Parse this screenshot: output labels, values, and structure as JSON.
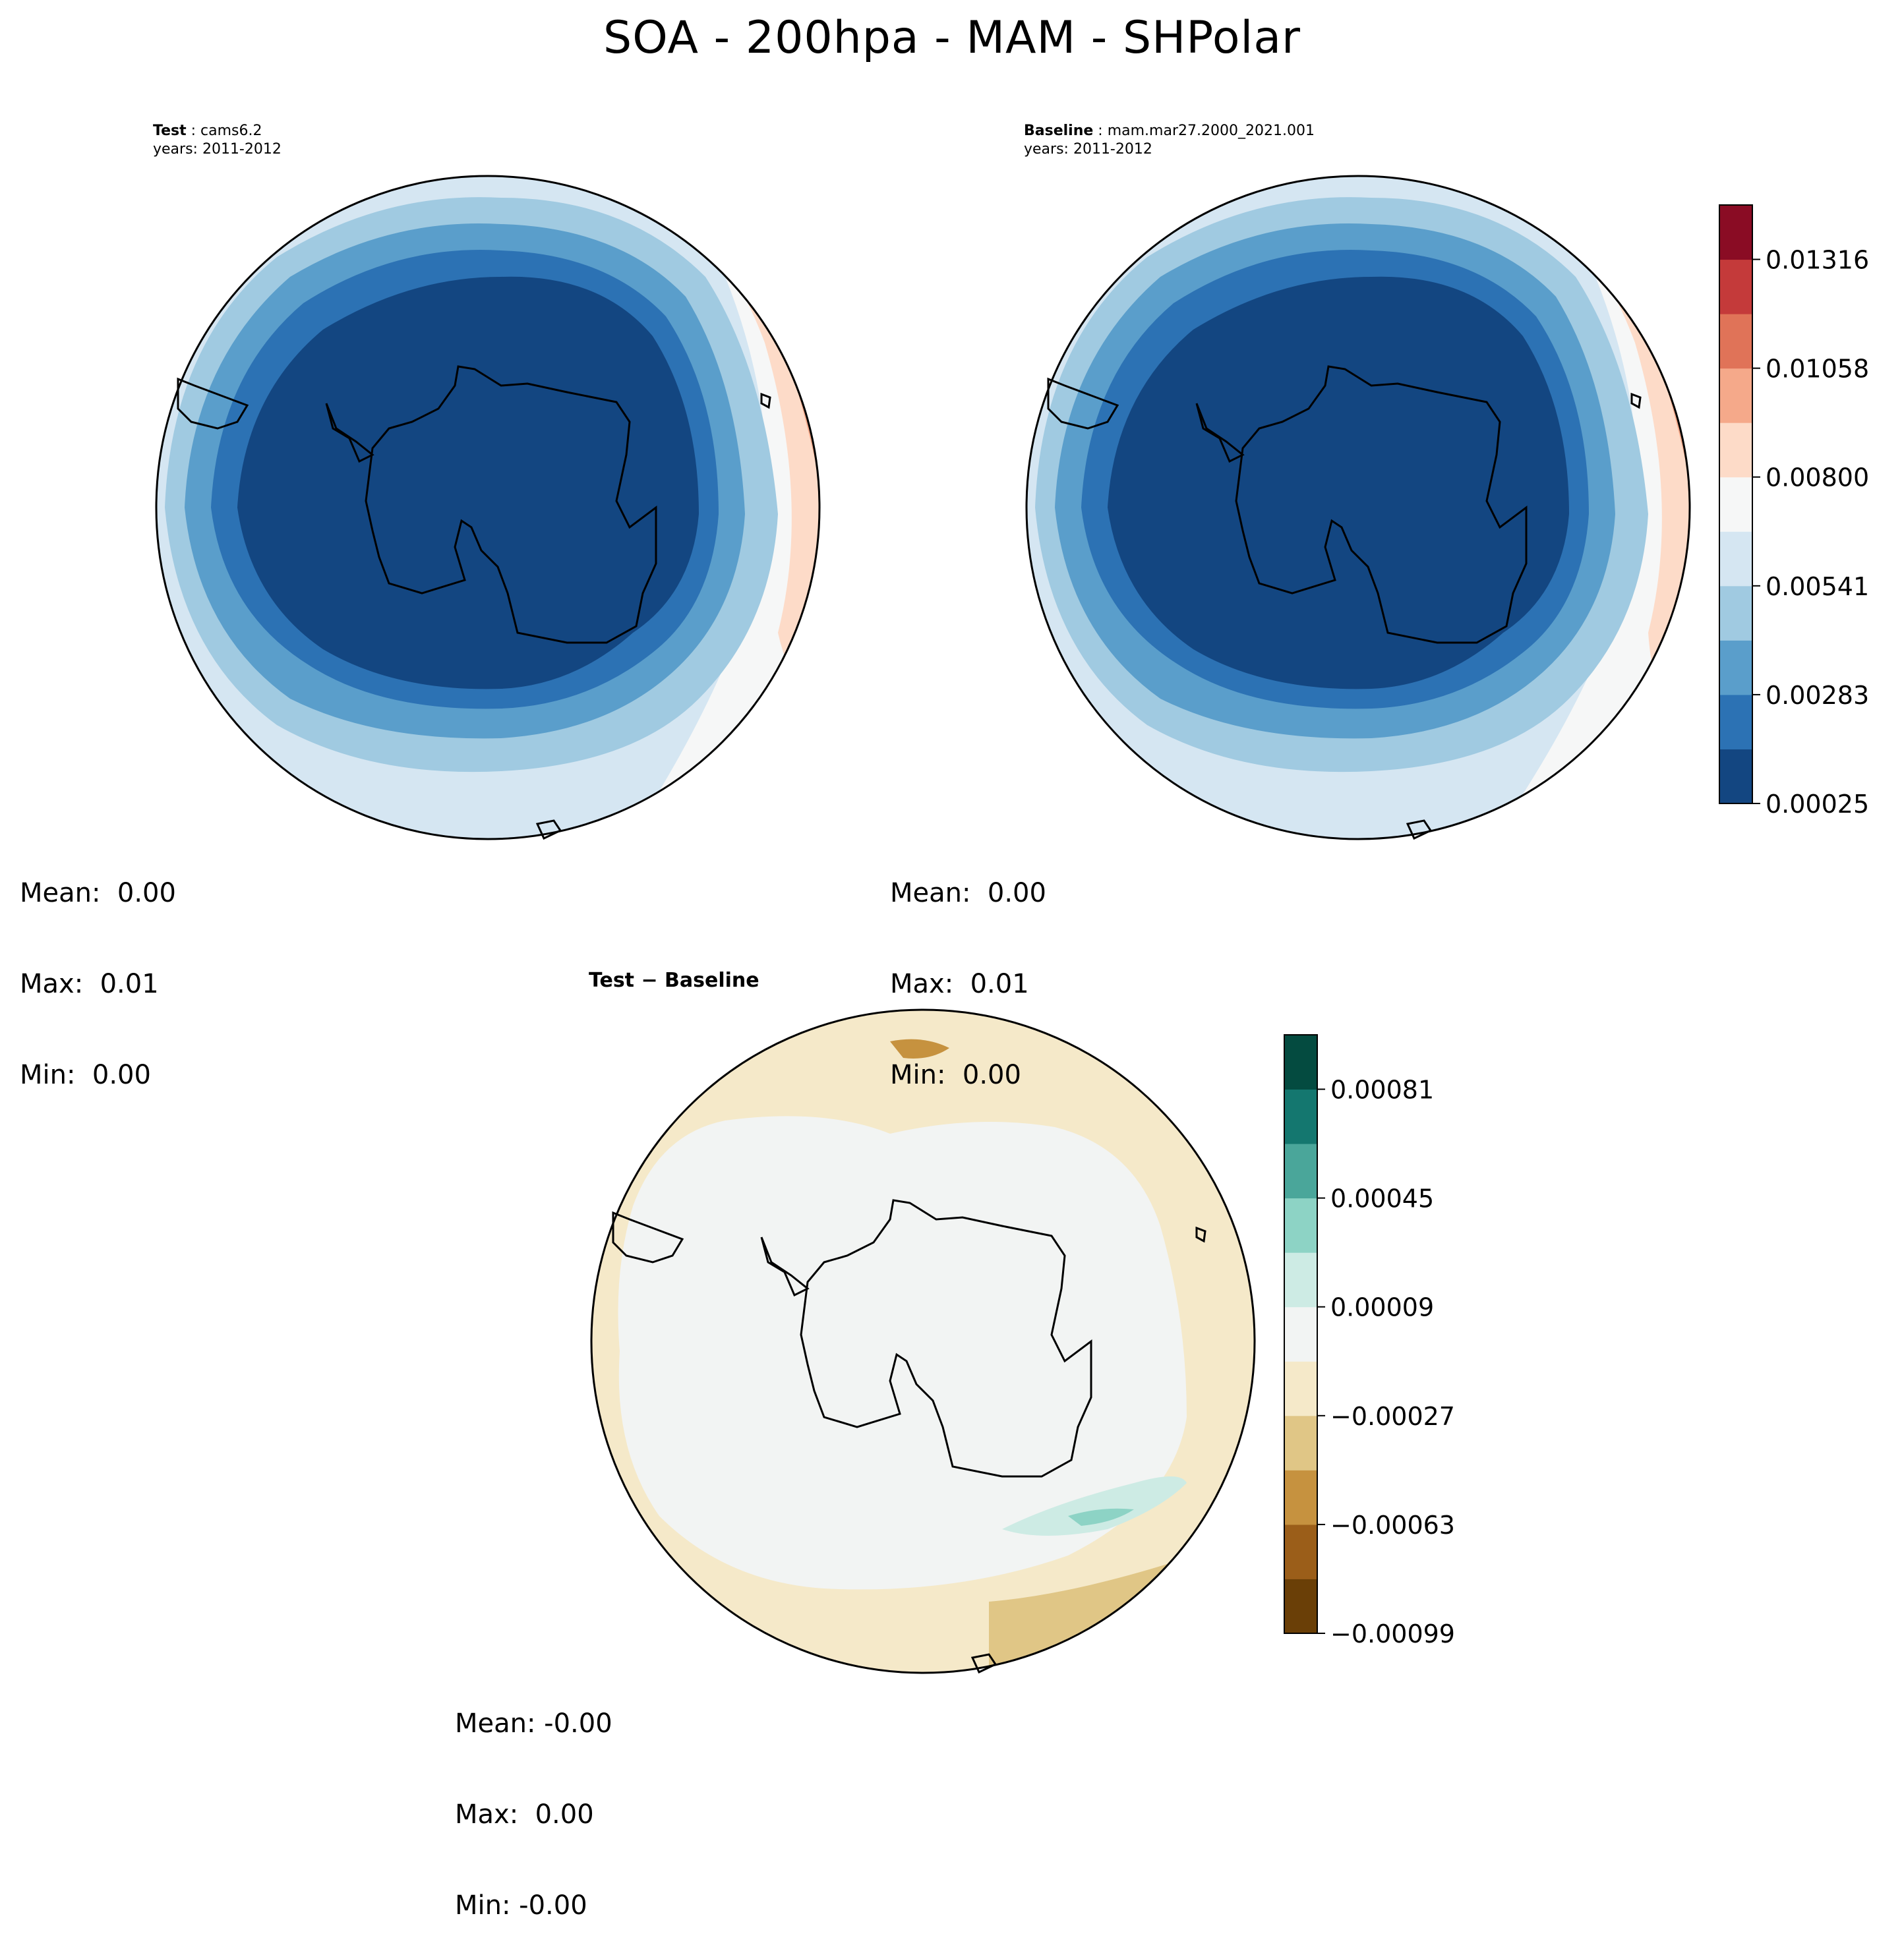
{
  "title": "SOA - 200hpa - MAM - SHPolar",
  "panels": {
    "test": {
      "label": "Test",
      "case": "cams6.2",
      "years": "years: 2011-2012",
      "stats": {
        "mean": "Mean:  0.00",
        "max": "Max:  0.01",
        "min": "Min:  0.00"
      }
    },
    "baseline": {
      "label": "Baseline",
      "case": "mam.mar27.2000_2021.001",
      "years": "years: 2011-2012",
      "stats": {
        "mean": "Mean:  0.00",
        "max": "Max:  0.01",
        "min": "Min:  0.00"
      }
    },
    "diff": {
      "label": "Test − Baseline",
      "stats": {
        "mean": "Mean: -0.00",
        "max": "Max:  0.00",
        "min": "Min: -0.00"
      }
    }
  },
  "colorbars": {
    "main": {
      "ticks": [
        "0.00025",
        "0.00283",
        "0.00541",
        "0.00800",
        "0.01058",
        "0.01316"
      ],
      "colors": [
        "#134681",
        "#2c72b4",
        "#5a9ecb",
        "#a0cae1",
        "#d5e6f2",
        "#f6f7f7",
        "#fddbc8",
        "#f5a98a",
        "#e07358",
        "#c43a3a",
        "#8a0c24"
      ]
    },
    "diff": {
      "ticks": [
        "−0.00099",
        "−0.00063",
        "−0.00027",
        "0.00009",
        "0.00045",
        "0.00081"
      ],
      "colors": [
        "#6a3f07",
        "#9b5e19",
        "#c6923f",
        "#e0c686",
        "#f5e9c9",
        "#f2f4f3",
        "#cdebe4",
        "#8dd3c5",
        "#4aa69a",
        "#14776f",
        "#044b40"
      ]
    }
  }
}
